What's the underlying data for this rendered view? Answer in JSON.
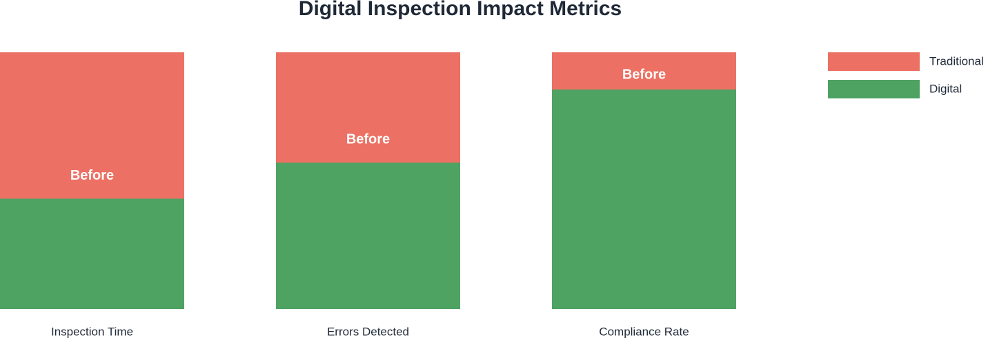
{
  "chart_data": {
    "type": "overlay-bar",
    "title": "Digital Inspection Impact Metrics",
    "categories": [
      "Inspection Time",
      "Errors Detected",
      "Compliance Rate"
    ],
    "series": [
      {
        "name": "Traditional",
        "color": "#ec7063",
        "values": [
          100,
          100,
          100
        ]
      },
      {
        "name": "Digital",
        "color": "#4ea262",
        "values": [
          43,
          57,
          85.5
        ]
      }
    ],
    "bar_labels": [
      "Before",
      "Before",
      "Before"
    ],
    "ylim": [
      0,
      100
    ],
    "legend": "top-right"
  }
}
